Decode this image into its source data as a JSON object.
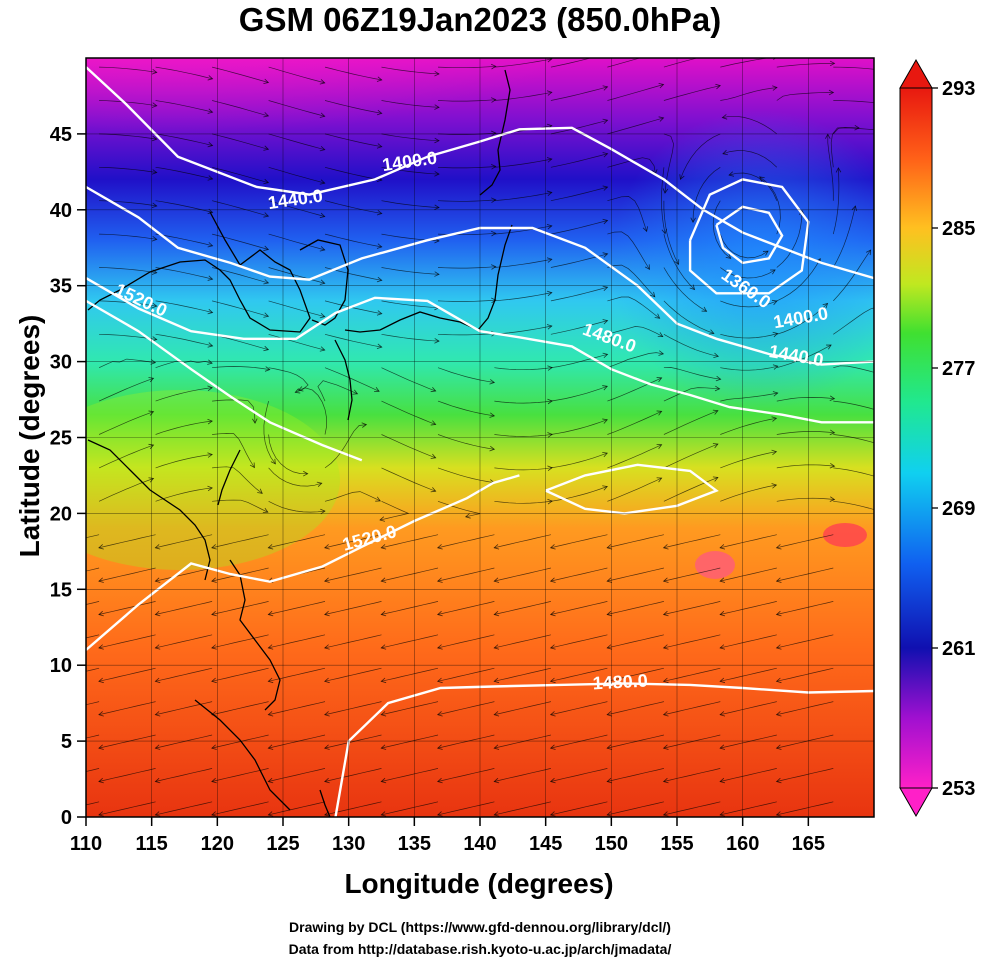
{
  "title": "GSM 06Z19Jan2023 (850.0hPa)",
  "axes": {
    "xlabel": "Longitude (degrees)",
    "ylabel": "Latitude  (degrees)",
    "x_ticks": [
      "110",
      "115",
      "120",
      "125",
      "130",
      "135",
      "140",
      "145",
      "150",
      "155",
      "160",
      "165"
    ],
    "y_ticks": [
      "0",
      "5",
      "10",
      "15",
      "20",
      "25",
      "30",
      "35",
      "40",
      "45"
    ]
  },
  "colorbar": {
    "labels": [
      "293",
      "285",
      "277",
      "269",
      "261",
      "253"
    ]
  },
  "contour_labels": [
    "1400.0",
    "1440.0",
    "1520.0",
    "1480.0",
    "1360.0",
    "1400.0",
    "1440.0",
    "1520.0",
    "1480.0"
  ],
  "credits": {
    "line1": "Drawing by DCL (https://www.gfd-dennou.org/library/dcl/)",
    "line2": "Data from http://database.rish.kyoto-u.ac.jp/arch/jmadata/"
  },
  "chart_data": {
    "type": "heatmap",
    "variable": "850.0hPa",
    "x_range": [
      110,
      170
    ],
    "y_range": [
      0,
      50
    ],
    "color_range": [
      253,
      293
    ],
    "contour_levels": [
      1360.0,
      1400.0,
      1440.0,
      1480.0,
      1520.0
    ],
    "contours": [
      {
        "value": 1400.0,
        "points": [
          [
            110,
            49.4
          ],
          [
            113,
            47
          ],
          [
            117,
            43.5
          ],
          [
            120,
            42.5
          ],
          [
            123,
            41.5
          ],
          [
            127,
            41
          ],
          [
            132,
            42
          ],
          [
            136,
            43.5
          ],
          [
            140,
            44.5
          ],
          [
            143,
            45.3
          ],
          [
            147,
            45.4
          ],
          [
            150,
            44
          ],
          [
            154,
            42
          ],
          [
            157,
            40
          ],
          [
            160,
            38.5
          ],
          [
            163,
            37.5
          ],
          [
            166,
            36.5
          ],
          [
            170,
            35.5
          ]
        ]
      },
      {
        "value": 1440.0,
        "points": [
          [
            110,
            41.5
          ],
          [
            114,
            39.5
          ],
          [
            117,
            37.5
          ],
          [
            121,
            36.5
          ],
          [
            124,
            35.6
          ],
          [
            127,
            35.4
          ],
          [
            131,
            36.8
          ],
          [
            136,
            38
          ],
          [
            140,
            38.8
          ],
          [
            144,
            38.8
          ],
          [
            148,
            37.5
          ],
          [
            152,
            35
          ],
          [
            155,
            32.5
          ],
          [
            158,
            31.5
          ],
          [
            162,
            30.5
          ],
          [
            166,
            29.8
          ],
          [
            170,
            30
          ]
        ]
      },
      {
        "value": 1480.0,
        "points": [
          [
            110,
            35.5
          ],
          [
            114,
            33.5
          ],
          [
            118,
            32
          ],
          [
            122,
            31.5
          ],
          [
            126,
            31.5
          ],
          [
            129,
            33.2
          ],
          [
            132,
            34.2
          ],
          [
            136,
            34
          ],
          [
            140,
            32
          ],
          [
            143,
            31.6
          ],
          [
            147,
            31
          ],
          [
            150,
            29.5
          ],
          [
            153,
            28.5
          ],
          [
            156,
            27.8
          ],
          [
            159,
            27
          ],
          [
            163,
            26.5
          ],
          [
            166,
            26
          ],
          [
            170,
            26
          ]
        ]
      },
      {
        "value": 1520.0,
        "points": [
          [
            110,
            34
          ],
          [
            114,
            32
          ],
          [
            118,
            29.5
          ],
          [
            121,
            27.7
          ],
          [
            124,
            26
          ],
          [
            128,
            24.5
          ],
          [
            131,
            23.5
          ]
        ]
      },
      {
        "value": 1520.0,
        "points": [
          [
            110,
            11
          ],
          [
            114,
            14
          ],
          [
            118,
            16.7
          ],
          [
            121,
            16
          ],
          [
            124,
            15.5
          ],
          [
            128,
            16.5
          ],
          [
            131,
            17.8
          ],
          [
            135,
            19.5
          ],
          [
            139,
            21
          ],
          [
            141,
            22
          ],
          [
            143,
            22.5
          ]
        ]
      },
      {
        "value": 1480.0,
        "points": [
          [
            129,
            0
          ],
          [
            130,
            5
          ],
          [
            133,
            7.5
          ],
          [
            137,
            8.5
          ],
          [
            141,
            8.6
          ],
          [
            146,
            8.7
          ],
          [
            151,
            8.8
          ],
          [
            156,
            8.7
          ],
          [
            160,
            8.5
          ],
          [
            165,
            8.2
          ],
          [
            170,
            8.3
          ]
        ]
      },
      {
        "value": 1520.0,
        "points": [
          [
            145,
            21.5
          ],
          [
            148,
            22.5
          ],
          [
            152,
            23.2
          ],
          [
            156,
            22.8
          ],
          [
            158,
            21.5
          ],
          [
            155,
            20.5
          ],
          [
            151,
            20
          ],
          [
            148,
            20.3
          ],
          [
            145,
            21.5
          ]
        ]
      },
      {
        "value": 1360.0,
        "points": [
          [
            158,
            39
          ],
          [
            160,
            40.2
          ],
          [
            162,
            39.8
          ],
          [
            163,
            38.3
          ],
          [
            162,
            36.8
          ],
          [
            160,
            36.5
          ],
          [
            158.5,
            37.5
          ],
          [
            158,
            39
          ]
        ]
      },
      {
        "value": 1400.0,
        "points": [
          [
            156,
            38
          ],
          [
            157.5,
            41
          ],
          [
            160,
            42
          ],
          [
            163,
            41.5
          ],
          [
            165,
            39.2
          ],
          [
            164.5,
            36
          ],
          [
            162,
            34.5
          ],
          [
            158,
            34.5
          ],
          [
            156,
            36
          ],
          [
            156,
            38
          ]
        ]
      }
    ],
    "colorbar_ticks": [
      293,
      285,
      277,
      269,
      261,
      253
    ]
  }
}
